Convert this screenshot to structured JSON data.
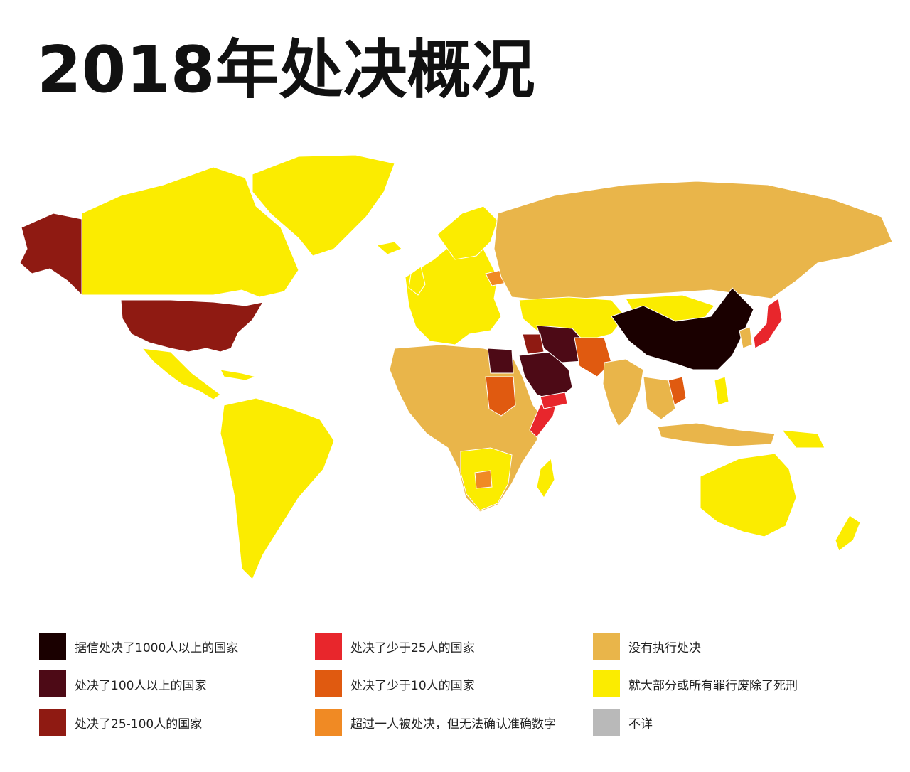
{
  "title": "2018年处决概况",
  "colors": {
    "over_1000": "#1a0000",
    "over_100": "#4d0a16",
    "between_25_100": "#8f1a12",
    "under_25": "#e8262c",
    "under_10": "#e05a10",
    "unknown_count": "#f08a24",
    "no_executions": "#e9b54a",
    "abolished": "#fbec00",
    "unknown": "#b9b9b9"
  },
  "legend": [
    {
      "key": "over_1000",
      "label": "据信处决了1000人以上的国家",
      "color": "#1a0000"
    },
    {
      "key": "over_100",
      "label": "处决了100人以上的国家",
      "color": "#4d0a16"
    },
    {
      "key": "between_25_100",
      "label": "处决了25-100人的国家",
      "color": "#8f1a12"
    },
    {
      "key": "under_25",
      "label": "处决了少于25人的国家",
      "color": "#e8262c"
    },
    {
      "key": "under_10",
      "label": "处决了少于10人的国家",
      "color": "#e05a10"
    },
    {
      "key": "unknown_count",
      "label": "超过一人被处决，但无法确认准确数字",
      "color": "#f08a24"
    },
    {
      "key": "no_executions",
      "label": "没有执行处决",
      "color": "#e9b54a"
    },
    {
      "key": "abolished",
      "label": "就大部分或所有罪行废除了死刑",
      "color": "#fbec00"
    },
    {
      "key": "unknown",
      "label": "不详",
      "color": "#b9b9b9"
    }
  ]
}
